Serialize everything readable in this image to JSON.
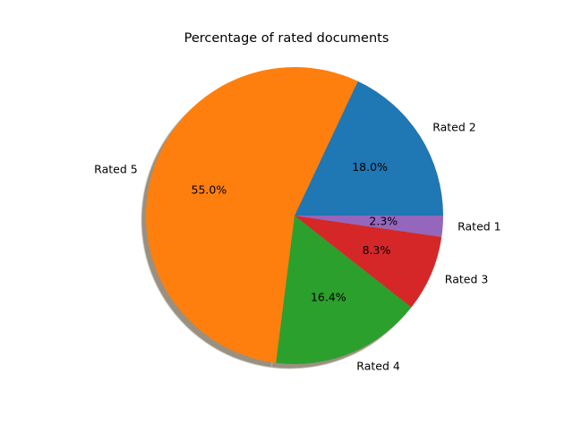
{
  "chart_data": {
    "type": "pie",
    "title": "Percentage of rated documents",
    "shadow": true,
    "start_angle_deg": 0,
    "direction": "counterclockwise",
    "slices": [
      {
        "label": "Rated 2",
        "value": 18.0,
        "pct_label": "18.0%",
        "color": "#1f77b4"
      },
      {
        "label": "Rated 5",
        "value": 55.0,
        "pct_label": "55.0%",
        "color": "#ff7f0e"
      },
      {
        "label": "Rated 4",
        "value": 16.4,
        "pct_label": "16.4%",
        "color": "#2ca02c"
      },
      {
        "label": "Rated 3",
        "value": 8.3,
        "pct_label": "8.3%",
        "color": "#d62728"
      },
      {
        "label": "Rated 1",
        "value": 2.3,
        "pct_label": "2.3%",
        "color": "#9467bd"
      }
    ]
  }
}
